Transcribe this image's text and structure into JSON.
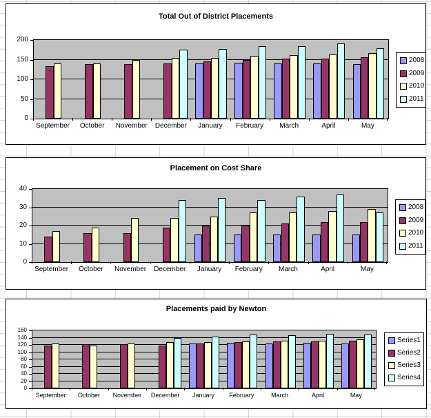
{
  "colors": {
    "plot_background": "#C0C0C0",
    "sheet_gridline": "#D4D4D4",
    "chart_border": "#000000",
    "series_2008": "#9999FF",
    "series_2009": "#993366",
    "series_2010": "#FFFFCC",
    "series_2011": "#CCFFFF"
  },
  "chart_data": [
    {
      "type": "bar",
      "title": "Total Out of District Placements",
      "categories": [
        "September",
        "October",
        "November",
        "December",
        "January",
        "February",
        "March",
        "April",
        "May"
      ],
      "ylim": [
        0,
        200
      ],
      "ytick_step": 50,
      "grid": true,
      "legend_position": "right",
      "series": [
        {
          "name": "2008",
          "color": "#9999FF",
          "values": [
            null,
            null,
            null,
            null,
            140,
            142,
            141,
            140,
            138
          ]
        },
        {
          "name": "2009",
          "color": "#993366",
          "values": [
            133,
            138,
            138,
            140,
            145,
            150,
            152,
            153,
            156
          ]
        },
        {
          "name": "2010",
          "color": "#FFFFCC",
          "values": [
            141,
            140,
            150,
            154,
            155,
            160,
            161,
            163,
            166
          ]
        },
        {
          "name": "2011",
          "color": "#CCFFFF",
          "values": [
            null,
            null,
            null,
            175,
            178,
            185,
            184,
            192,
            179
          ]
        }
      ]
    },
    {
      "type": "bar",
      "title": "Placement on Cost Share",
      "categories": [
        "September",
        "October",
        "November",
        "December",
        "January",
        "February",
        "March",
        "April",
        "May"
      ],
      "ylim": [
        0,
        40
      ],
      "ytick_step": 10,
      "grid": true,
      "legend_position": "right",
      "series": [
        {
          "name": "2008",
          "color": "#9999FF",
          "values": [
            null,
            null,
            null,
            null,
            15,
            15,
            15,
            15,
            15
          ]
        },
        {
          "name": "2009",
          "color": "#993366",
          "values": [
            14,
            16,
            16,
            19,
            20,
            20,
            21,
            22,
            22
          ]
        },
        {
          "name": "2010",
          "color": "#FFFFCC",
          "values": [
            17,
            19,
            24,
            24,
            25,
            27,
            27,
            28,
            29
          ]
        },
        {
          "name": "2011",
          "color": "#CCFFFF",
          "values": [
            null,
            null,
            null,
            34,
            35,
            34,
            36,
            37,
            27
          ]
        }
      ]
    },
    {
      "type": "bar",
      "title": "Placements paid by Newton",
      "categories": [
        "September",
        "October",
        "November",
        "December",
        "January",
        "February",
        "March",
        "April",
        "May"
      ],
      "ylim": [
        0,
        160
      ],
      "ytick_step": 20,
      "grid": true,
      "legend_position": "right",
      "series": [
        {
          "name": "Series1",
          "color": "#9999FF",
          "values": [
            null,
            null,
            null,
            null,
            124,
            125,
            123,
            125,
            123
          ]
        },
        {
          "name": "Series2",
          "color": "#993366",
          "values": [
            119,
            121,
            121,
            119,
            124,
            127,
            129,
            130,
            131
          ]
        },
        {
          "name": "Series3",
          "color": "#FFFFCC",
          "values": [
            124,
            119,
            124,
            128,
            127,
            130,
            131,
            131,
            135
          ]
        },
        {
          "name": "Series4",
          "color": "#CCFFFF",
          "values": [
            null,
            null,
            null,
            140,
            142,
            148,
            146,
            151,
            148
          ]
        }
      ]
    }
  ]
}
